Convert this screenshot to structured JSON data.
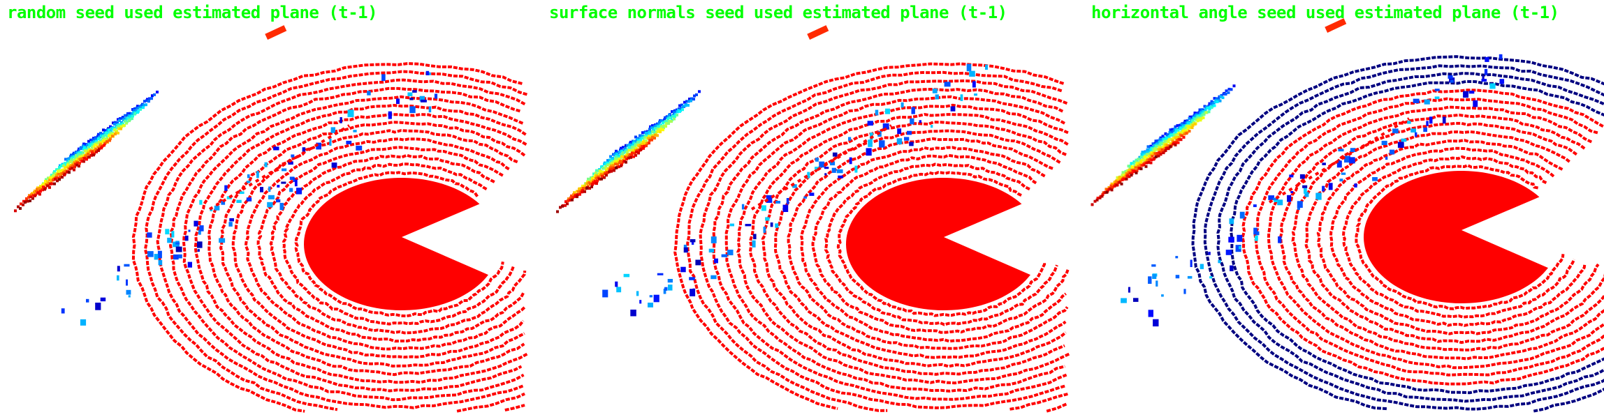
{
  "panels": [
    {
      "title": "random seed used estimated plane (t-1)",
      "variant": "random"
    },
    {
      "title": "surface normals seed used estimated plane (t-1)",
      "variant": "normals"
    },
    {
      "title": "horizontal angle seed used estimated plane (t-1)",
      "variant": "horizontal"
    }
  ],
  "colors": {
    "title": "#00ff00",
    "ground": "#ff0000",
    "obstacle_high": "#ff2a00",
    "obstacle_low": "#00009a",
    "background": "#ffffff"
  }
}
